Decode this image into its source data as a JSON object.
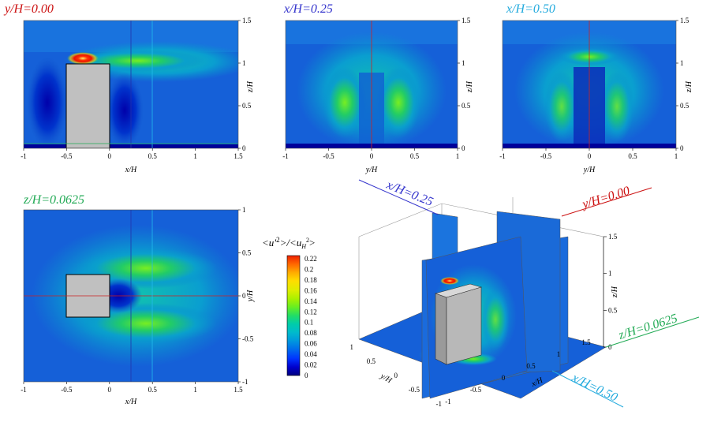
{
  "chart_data": [
    {
      "type": "heatmap",
      "panel": "y-section",
      "title": "y/H=0.00",
      "title_color": "#cc1111",
      "xlabel": "x/H",
      "ylabel": "z/H",
      "xlim": [
        -1,
        1.5
      ],
      "ylim": [
        0,
        1.5
      ],
      "xticks": [
        "-1",
        "-0.5",
        "0",
        "0.5",
        "1",
        "1.5"
      ],
      "yticks": [
        "0",
        "0.5",
        "1",
        "1.5"
      ],
      "building": {
        "x": [
          -0.5,
          0
        ],
        "z": [
          0,
          1
        ]
      },
      "peak": {
        "x": -0.3,
        "z": 1.05,
        "value": 0.22
      }
    },
    {
      "type": "heatmap",
      "panel": "x-section",
      "title": "x/H=0.25",
      "title_color": "#3333cc",
      "xlabel": "y/H",
      "ylabel": "z/H",
      "xlim": [
        -1,
        1
      ],
      "ylim": [
        0,
        1.5
      ],
      "xticks": [
        "-1",
        "-0.5",
        "0",
        "0.5",
        "1"
      ],
      "yticks": [
        "0",
        "0.5",
        "1",
        "1.5"
      ],
      "peak": {
        "y": -0.3,
        "z": 0.55,
        "value": 0.13
      }
    },
    {
      "type": "heatmap",
      "panel": "x-section",
      "title": "x/H=0.50",
      "title_color": "#22aadd",
      "xlabel": "y/H",
      "ylabel": "z/H",
      "xlim": [
        -1,
        1
      ],
      "ylim": [
        0,
        1.5
      ],
      "xticks": [
        "-1",
        "-0.5",
        "0",
        "0.5",
        "1"
      ],
      "yticks": [
        "0",
        "0.5",
        "1",
        "1.5"
      ],
      "peak": {
        "y": 0,
        "z": 1.05,
        "value": 0.14
      }
    },
    {
      "type": "heatmap",
      "panel": "z-section",
      "title": "z/H=0.0625",
      "title_color": "#22aa55",
      "xlabel": "x/H",
      "ylabel": "y/H",
      "xlim": [
        -1,
        1.5
      ],
      "ylim": [
        -1,
        1
      ],
      "xticks": [
        "-1",
        "-0.5",
        "0",
        "0.5",
        "1",
        "1.5"
      ],
      "yticks": [
        "-1",
        "-0.5",
        "0",
        "0.5",
        "1"
      ],
      "building": {
        "x": [
          -0.5,
          0
        ],
        "y": [
          -0.25,
          0.25
        ]
      },
      "peak": {
        "x": 0.3,
        "y": 0.3,
        "value": 0.12
      }
    }
  ],
  "colorbar": {
    "title_html": "<u'²>/<u_H²>",
    "title_main": "<u'",
    "title_mid": ">/<u",
    "title_sub": "H",
    "title_end": ">",
    "ticks": [
      "0.22",
      "0.2",
      "0.18",
      "0.16",
      "0.14",
      "0.12",
      "0.1",
      "0.08",
      "0.06",
      "0.04",
      "0.02",
      "0"
    ],
    "colors": [
      "#00007f",
      "#0000cc",
      "#0033ff",
      "#0066ee",
      "#0099dd",
      "#00bbcc",
      "#00ccaa",
      "#22dd66",
      "#66ee22",
      "#aaf000",
      "#ddee00",
      "#ffdd00",
      "#ffaa00",
      "#ff6600",
      "#ee2200"
    ]
  },
  "view3d": {
    "labels": {
      "x025": "x/H=0.25",
      "y000": "y/H=0.00",
      "z0625": "z/H=0.0625",
      "x050": "x/H=0.50"
    },
    "axis_titles": {
      "x": "x/H",
      "y": "y/H",
      "z": "z/H"
    },
    "zticks": [
      "0",
      "0.5",
      "1",
      "1.5"
    ],
    "yticks": [
      "-1",
      "-0.5",
      "0",
      "0.5",
      "1"
    ],
    "xticks": [
      "-1",
      "-0.5",
      "0",
      "0.5",
      "1",
      "1.5"
    ]
  }
}
